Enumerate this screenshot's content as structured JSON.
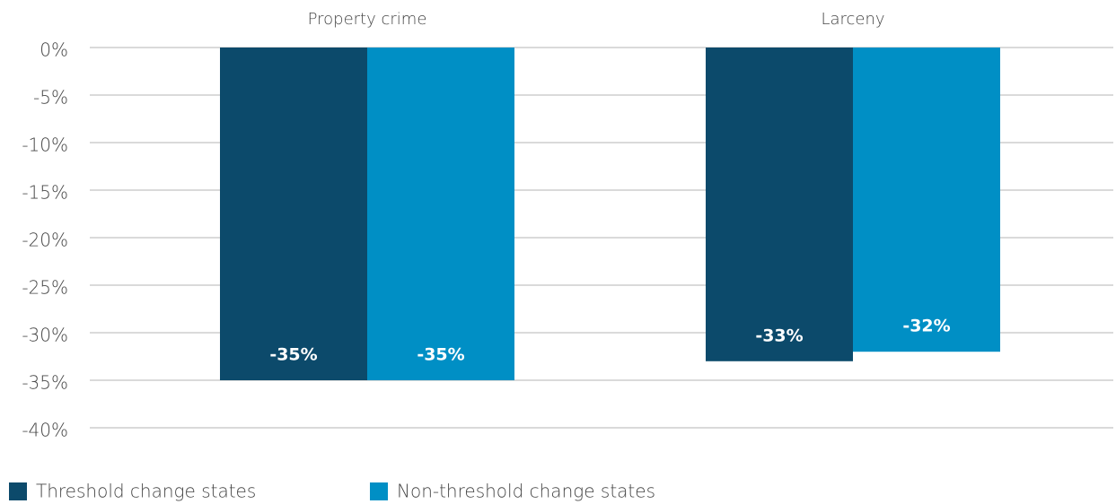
{
  "chart_data": {
    "type": "bar",
    "categories": [
      "Property crime",
      "Larceny"
    ],
    "series": [
      {
        "name": "Threshold change states",
        "color": "#0c4a6b",
        "values": [
          -35,
          -33
        ],
        "value_labels": [
          "-35%",
          "-33%"
        ]
      },
      {
        "name": "Non-threshold change states",
        "color": "#008fc5",
        "values": [
          -35,
          -32
        ],
        "value_labels": [
          "-35%",
          "-32%"
        ]
      }
    ],
    "ylim": [
      -40,
      0
    ],
    "yticks": [
      {
        "value": 0,
        "label": "0%"
      },
      {
        "value": -5,
        "label": "-5%"
      },
      {
        "value": -10,
        "label": "-10%"
      },
      {
        "value": -15,
        "label": "-15%"
      },
      {
        "value": -20,
        "label": "-20%"
      },
      {
        "value": -25,
        "label": "-25%"
      },
      {
        "value": -30,
        "label": "-30%"
      },
      {
        "value": -35,
        "label": "-35%"
      },
      {
        "value": -40,
        "label": "-40%"
      }
    ],
    "grid": true,
    "legend": "bottom-left"
  }
}
